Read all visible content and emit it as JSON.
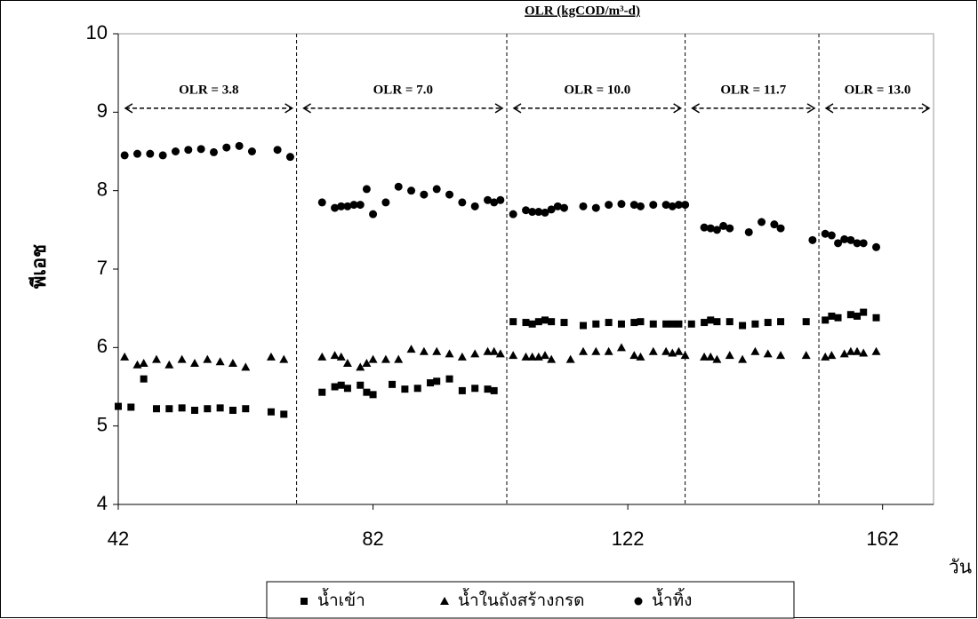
{
  "chart_data": {
    "type": "scatter",
    "title": "OLR (kgCOD/m³-d)",
    "x_label": "วัน",
    "y_label": "พีเอช",
    "xlim": [
      42,
      170
    ],
    "ylim": [
      4,
      10
    ],
    "xticks": [
      42,
      82,
      122,
      162
    ],
    "yticks": [
      4,
      5,
      6,
      7,
      8,
      9,
      10
    ],
    "phase_boundaries": [
      70,
      103,
      131,
      152
    ],
    "annotations": [
      "OLR = 3.8",
      "OLR = 7.0",
      "OLR = 10.0",
      "OLR = 11.7",
      "OLR = 13.0"
    ],
    "legend": "bottom",
    "series": [
      {
        "name": "น้ำเข้า",
        "marker": "square",
        "color": "#000000",
        "x": [
          42,
          44,
          46,
          48,
          50,
          52,
          54,
          56,
          58,
          60,
          62,
          66,
          68,
          74,
          76,
          77,
          78,
          80,
          81,
          82,
          85,
          87,
          89,
          91,
          92,
          94,
          96,
          98,
          100,
          101,
          104,
          106,
          107,
          108,
          109,
          110,
          112,
          115,
          117,
          119,
          121,
          123,
          124,
          126,
          128,
          129,
          130,
          132,
          134,
          135,
          136,
          138,
          140,
          142,
          144,
          146,
          150,
          153,
          154,
          155,
          157,
          158,
          159,
          161
        ],
        "values": [
          5.25,
          5.24,
          5.6,
          5.22,
          5.22,
          5.23,
          5.2,
          5.22,
          5.23,
          5.2,
          5.22,
          5.18,
          5.15,
          5.43,
          5.5,
          5.52,
          5.48,
          5.52,
          5.43,
          5.4,
          5.53,
          5.47,
          5.48,
          5.55,
          5.57,
          5.6,
          5.45,
          5.48,
          5.47,
          5.45,
          6.33,
          6.32,
          6.3,
          6.33,
          6.35,
          6.33,
          6.32,
          6.28,
          6.3,
          6.32,
          6.3,
          6.32,
          6.33,
          6.3,
          6.3,
          6.3,
          6.3,
          6.3,
          6.32,
          6.35,
          6.33,
          6.33,
          6.28,
          6.3,
          6.32,
          6.33,
          6.33,
          6.35,
          6.4,
          6.38,
          6.42,
          6.4,
          6.45,
          6.38
        ]
      },
      {
        "name": "น้ำในถังสร้างกรด",
        "marker": "triangle",
        "color": "#000000",
        "x": [
          43,
          45,
          46,
          48,
          50,
          52,
          54,
          56,
          58,
          60,
          62,
          66,
          68,
          74,
          76,
          77,
          78,
          80,
          81,
          82,
          84,
          86,
          88,
          90,
          92,
          94,
          96,
          98,
          100,
          101,
          102,
          104,
          106,
          107,
          108,
          109,
          110,
          113,
          115,
          117,
          119,
          121,
          123,
          124,
          126,
          128,
          129,
          130,
          131,
          134,
          135,
          136,
          138,
          140,
          142,
          144,
          146,
          150,
          153,
          154,
          156,
          157,
          158,
          159,
          161
        ],
        "values": [
          5.88,
          5.78,
          5.8,
          5.85,
          5.78,
          5.85,
          5.8,
          5.85,
          5.82,
          5.8,
          5.75,
          5.88,
          5.85,
          5.88,
          5.9,
          5.88,
          5.8,
          5.75,
          5.8,
          5.85,
          5.85,
          5.85,
          5.98,
          5.95,
          5.95,
          5.92,
          5.88,
          5.92,
          5.95,
          5.95,
          5.92,
          5.9,
          5.88,
          5.88,
          5.88,
          5.9,
          5.85,
          5.85,
          5.95,
          5.95,
          5.95,
          6.0,
          5.9,
          5.88,
          5.95,
          5.95,
          5.93,
          5.95,
          5.9,
          5.88,
          5.88,
          5.85,
          5.9,
          5.85,
          5.95,
          5.92,
          5.9,
          5.9,
          5.88,
          5.9,
          5.92,
          5.95,
          5.95,
          5.93,
          5.95
        ]
      },
      {
        "name": "น้ำทิ้ง",
        "marker": "circle",
        "color": "#000000",
        "x": [
          43,
          45,
          47,
          49,
          51,
          53,
          55,
          57,
          59,
          61,
          63,
          67,
          69,
          74,
          76,
          77,
          78,
          79,
          80,
          81,
          82,
          84,
          86,
          88,
          90,
          92,
          94,
          96,
          98,
          100,
          101,
          102,
          104,
          106,
          107,
          108,
          109,
          110,
          111,
          112,
          115,
          117,
          119,
          121,
          123,
          124,
          126,
          128,
          129,
          130,
          131,
          134,
          135,
          136,
          137,
          138,
          141,
          143,
          145,
          146,
          151,
          153,
          154,
          155,
          156,
          157,
          158,
          159,
          161
        ],
        "values": [
          8.45,
          8.47,
          8.47,
          8.45,
          8.5,
          8.52,
          8.53,
          8.49,
          8.55,
          8.57,
          8.5,
          8.52,
          8.43,
          7.85,
          7.78,
          7.8,
          7.8,
          7.82,
          7.82,
          8.02,
          7.7,
          7.85,
          8.05,
          8.0,
          7.95,
          8.02,
          7.95,
          7.85,
          7.8,
          7.88,
          7.85,
          7.88,
          7.7,
          7.75,
          7.73,
          7.73,
          7.72,
          7.76,
          7.8,
          7.78,
          7.8,
          7.78,
          7.82,
          7.83,
          7.82,
          7.8,
          7.82,
          7.82,
          7.8,
          7.82,
          7.82,
          7.53,
          7.52,
          7.5,
          7.55,
          7.52,
          7.47,
          7.6,
          7.57,
          7.52,
          7.37,
          7.45,
          7.43,
          7.33,
          7.38,
          7.37,
          7.33,
          7.33,
          7.28
        ]
      }
    ]
  }
}
